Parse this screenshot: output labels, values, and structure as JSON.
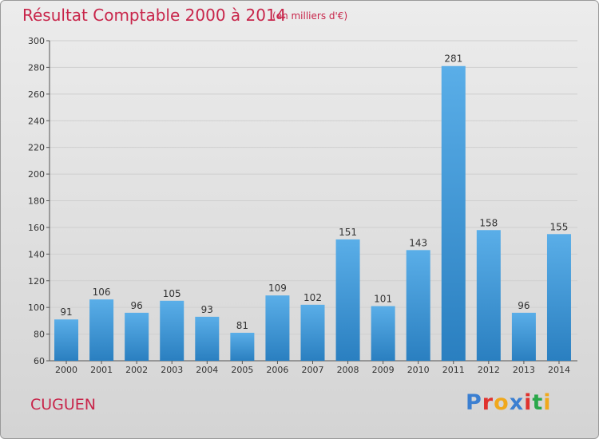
{
  "header": {
    "title": "Résultat Comptable 2000 à 2014",
    "unit": "(en milliers d'€)"
  },
  "footer": {
    "place": "CUGUEN",
    "logo_text": "Proxiti"
  },
  "colors": {
    "title": "#c8254a",
    "bar_top": "#5aaee8",
    "bar_bottom": "#2a7fc0",
    "logo": [
      "#3b7fd1",
      "#e0322d",
      "#f0a81c",
      "#3b7fd1",
      "#e0322d",
      "#2aa84a",
      "#f0a81c"
    ]
  },
  "chart_data": {
    "type": "bar",
    "categories": [
      "2000",
      "2001",
      "2002",
      "2003",
      "2004",
      "2005",
      "2006",
      "2007",
      "2008",
      "2009",
      "2010",
      "2011",
      "2012",
      "2013",
      "2014"
    ],
    "values": [
      91,
      106,
      96,
      105,
      93,
      81,
      109,
      102,
      151,
      101,
      143,
      281,
      158,
      96,
      155
    ],
    "ylim": [
      60,
      300
    ],
    "yticks": [
      60,
      80,
      100,
      120,
      140,
      160,
      180,
      200,
      220,
      240,
      260,
      280,
      300
    ],
    "grid": true
  }
}
